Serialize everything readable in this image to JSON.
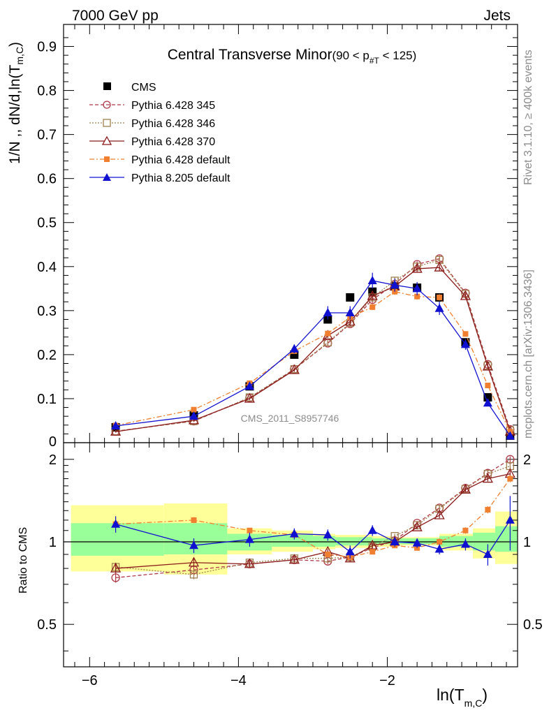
{
  "header": {
    "left": "7000 GeV pp",
    "right": "Jets"
  },
  "side_texts": {
    "rivet": "Rivet 3.1.10, ≥ 400k events",
    "mcplots": "mcplots.cern.ch [arXiv:1306.3436]"
  },
  "watermark": "CMS_2011_S8957746",
  "colors": {
    "cms": "#000000",
    "p345": "#b03a48",
    "p346": "#a08050",
    "p370": "#8b1a1a",
    "pdef": "#f08030",
    "p8": "#1010d0",
    "band_inner": "#99ff99",
    "band_outer": "#ffff99"
  },
  "chart_data": [
    {
      "type": "scatter",
      "title": "Central Transverse Minor",
      "subtitle": "(90 < p",
      "subtitle_sub": "#T",
      "subtitle_end": " < 125)",
      "ylabel": "1/N ,, dN/d,ln(T",
      "ylabel_sub": "m,C",
      "ylabel_end": ")",
      "xlim": [
        -6.35,
        -0.25
      ],
      "ylim": [
        0,
        0.95
      ],
      "xticks": [
        -6,
        -4,
        -2
      ],
      "xtick_labels": [
        "−6",
        "−4",
        "−2"
      ],
      "yticks": [
        0.1,
        0.2,
        0.3,
        0.4,
        0.5,
        0.6,
        0.7,
        0.8,
        0.9
      ],
      "ytick_labels": [
        "0.1",
        "0.2",
        "0.3",
        "0.4",
        "0.5",
        "0.6",
        "0.7",
        "0.8",
        "0.9"
      ],
      "y_zero_label": "0",
      "x": [
        -5.65,
        -4.6,
        -3.85,
        -3.25,
        -2.8,
        -2.5,
        -2.2,
        -1.9,
        -1.6,
        -1.3,
        -0.95,
        -0.65,
        -0.35
      ],
      "legend": [
        "CMS",
        "Pythia 6.428 345",
        "Pythia 6.428 346",
        "Pythia 6.428 370",
        "Pythia 6.428 default",
        "Pythia 8.205 default"
      ],
      "series": [
        {
          "name": "CMS",
          "values": [
            0.035,
            0.062,
            0.128,
            0.2,
            0.28,
            0.33,
            0.343,
            0.355,
            0.352,
            0.33,
            0.228,
            0.103,
            0.016
          ],
          "errors": [
            0,
            0,
            0,
            0,
            0,
            0,
            0,
            0,
            0,
            0,
            0,
            0,
            0
          ]
        },
        {
          "name": "Pythia 6.428 345",
          "values": [
            0.026,
            0.049,
            0.102,
            0.167,
            0.226,
            0.27,
            0.325,
            0.36,
            0.405,
            0.418,
            0.34,
            0.178,
            0.03
          ],
          "errors": [
            0.002,
            0.002,
            0.003,
            0.004,
            0.005,
            0.006,
            0.007,
            0.007,
            0.007,
            0.007,
            0.006,
            0.005,
            0.002
          ]
        },
        {
          "name": "Pythia 6.428 346",
          "values": [
            0.026,
            0.049,
            0.103,
            0.167,
            0.228,
            0.272,
            0.33,
            0.368,
            0.4,
            0.415,
            0.338,
            0.175,
            0.028
          ],
          "errors": [
            0.002,
            0.002,
            0.003,
            0.004,
            0.005,
            0.006,
            0.007,
            0.007,
            0.007,
            0.007,
            0.006,
            0.005,
            0.002
          ]
        },
        {
          "name": "Pythia 6.428 370",
          "values": [
            0.025,
            0.051,
            0.1,
            0.165,
            0.243,
            0.275,
            0.333,
            0.355,
            0.395,
            0.398,
            0.333,
            0.173,
            0.025
          ],
          "errors": [
            0.002,
            0.002,
            0.003,
            0.004,
            0.005,
            0.006,
            0.007,
            0.007,
            0.007,
            0.007,
            0.006,
            0.005,
            0.002
          ]
        },
        {
          "name": "Pythia 6.428 default",
          "values": [
            0.039,
            0.075,
            0.135,
            0.208,
            0.248,
            0.285,
            0.308,
            0.343,
            0.332,
            0.33,
            0.247,
            0.13,
            0.025
          ],
          "errors": [
            0.002,
            0.002,
            0.003,
            0.004,
            0.005,
            0.006,
            0.007,
            0.007,
            0.007,
            0.007,
            0.006,
            0.005,
            0.002
          ]
        },
        {
          "name": "Pythia 8.205 default",
          "values": [
            0.038,
            0.06,
            0.128,
            0.213,
            0.295,
            0.295,
            0.368,
            0.358,
            0.35,
            0.305,
            0.223,
            0.09,
            0.015
          ],
          "errors": [
            0.005,
            0.005,
            0.007,
            0.01,
            0.015,
            0.015,
            0.018,
            0.015,
            0.015,
            0.015,
            0.012,
            0.006,
            0.003
          ]
        }
      ]
    },
    {
      "type": "scatter",
      "ylabel": "Ratio to CMS",
      "xlabel": "ln(T",
      "xlabel_sub": "m,C",
      "xlabel_end": ")",
      "ylim": [
        0.35,
        2.3
      ],
      "yticks": [
        0.5,
        1,
        2
      ],
      "ytick_labels": [
        "0.5",
        "1",
        "2"
      ],
      "band_edges": [
        -6.25,
        -5.0,
        -4.15,
        -3.55,
        -3.0,
        -2.7,
        -2.2,
        -1.95,
        -1.3,
        -0.85,
        -0.55,
        -0.25
      ],
      "band_inner": [
        [
          0.89,
          1.17
        ],
        [
          0.9,
          1.17
        ],
        [
          0.93,
          1.07
        ],
        [
          0.96,
          1.06
        ],
        [
          0.96,
          1.05
        ],
        [
          0.97,
          1.04
        ],
        [
          0.98,
          1.03
        ],
        [
          0.98,
          1.03
        ],
        [
          0.96,
          1.05
        ],
        [
          0.93,
          1.08
        ],
        [
          0.92,
          1.14
        ]
      ],
      "band_outer": [
        [
          0.78,
          1.36
        ],
        [
          0.76,
          1.38
        ],
        [
          0.9,
          1.12
        ],
        [
          0.92,
          1.1
        ],
        [
          0.94,
          1.07
        ],
        [
          0.95,
          1.06
        ],
        [
          0.96,
          1.05
        ],
        [
          0.97,
          1.04
        ],
        [
          0.93,
          1.07
        ],
        [
          0.87,
          1.12
        ],
        [
          0.83,
          1.29
        ]
      ],
      "series": [
        {
          "name": "Pythia 6.428 345",
          "values": [
            0.74,
            0.79,
            0.83,
            0.86,
            0.85,
            0.88,
            0.95,
            1.01,
            1.17,
            1.33,
            1.57,
            1.78,
            2.0
          ],
          "errors": [
            0.03,
            0.03,
            0.02,
            0.02,
            0.02,
            0.02,
            0.02,
            0.02,
            0.02,
            0.03,
            0.03,
            0.04,
            0.05
          ]
        },
        {
          "name": "Pythia 6.428 346",
          "values": [
            0.81,
            0.76,
            0.84,
            0.87,
            0.87,
            0.88,
            0.96,
            1.05,
            1.15,
            1.32,
            1.56,
            1.77,
            1.89
          ],
          "errors": [
            0.03,
            0.03,
            0.02,
            0.02,
            0.02,
            0.02,
            0.02,
            0.02,
            0.02,
            0.03,
            0.03,
            0.04,
            0.05
          ]
        },
        {
          "name": "Pythia 6.428 370",
          "values": [
            0.8,
            0.84,
            0.83,
            0.86,
            0.92,
            0.87,
            0.97,
            1.0,
            1.13,
            1.25,
            1.55,
            1.7,
            1.77
          ],
          "errors": [
            0.03,
            0.03,
            0.02,
            0.02,
            0.02,
            0.02,
            0.02,
            0.02,
            0.02,
            0.03,
            0.03,
            0.04,
            0.05
          ]
        },
        {
          "name": "Pythia 6.428 default",
          "values": [
            1.16,
            1.2,
            1.1,
            1.06,
            0.9,
            0.88,
            0.92,
            0.97,
            0.95,
            1.0,
            1.1,
            1.31,
            1.7
          ],
          "errors": [
            0.03,
            0.03,
            0.02,
            0.02,
            0.02,
            0.02,
            0.02,
            0.02,
            0.02,
            0.03,
            0.03,
            0.04,
            0.05
          ]
        },
        {
          "name": "Pythia 8.205 default",
          "values": [
            1.16,
            0.97,
            1.02,
            1.07,
            1.06,
            0.92,
            1.1,
            1.0,
            0.99,
            0.94,
            0.98,
            0.9,
            1.2
          ],
          "errors": [
            0.08,
            0.06,
            0.06,
            0.05,
            0.05,
            0.05,
            0.05,
            0.04,
            0.04,
            0.04,
            0.05,
            0.08,
            0.27
          ]
        }
      ]
    }
  ]
}
